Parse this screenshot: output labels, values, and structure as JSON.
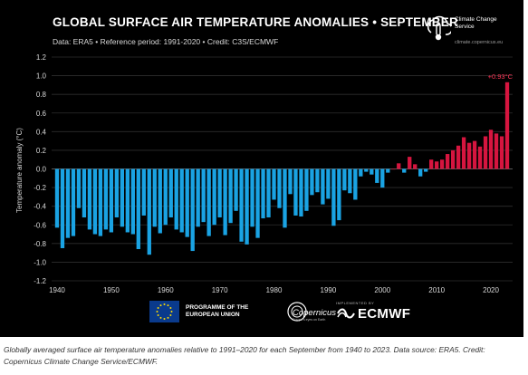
{
  "header": {
    "title": "GLOBAL SURFACE AIR TEMPERATURE ANOMALIES • SEPTEMBER",
    "subtitle": "Data: ERA5 • Reference period: 1991-2020 • Credit: C3S/ECMWF"
  },
  "logo": {
    "name": "Climate Change Service",
    "url": "climate.copernicus.eu",
    "icon": "thermometer-cloud-icon"
  },
  "footer": {
    "eu_text": "PROGRAMME OF THE EUROPEAN UNION",
    "copernicus_text": "Copernicus",
    "copernicus_sub": "Europe's eyes on Earth",
    "ecmwf_small": "IMPLEMENTED BY",
    "ecmwf_text": "ECMWF"
  },
  "caption": "Globally averaged surface air temperature anomalies relative to 1991–2020 for each September from 1940 to 2023. Data source: ERA5. Credit: Copernicus Climate Change Service/ECMWF.",
  "colors": {
    "background": "#000000",
    "positive": "#d6153f",
    "negative": "#1aa3e3",
    "label": "#ff3355"
  },
  "chart_data": {
    "type": "bar",
    "title": "GLOBAL SURFACE AIR TEMPERATURE ANOMALIES • SEPTEMBER",
    "ylabel": "Temperature anomaly (°C)",
    "xlabel": "",
    "ylim": [
      -1.2,
      1.2
    ],
    "xlim": [
      1939,
      2024
    ],
    "yticks": [
      "1.2",
      "1.0",
      "0.8",
      "0.6",
      "0.4",
      "0.2",
      "0.0",
      "-0.2",
      "-0.4",
      "-0.6",
      "-0.8",
      "-1.0",
      "-1.2"
    ],
    "xticks": [
      "1940",
      "1950",
      "1960",
      "1970",
      "1980",
      "1990",
      "2000",
      "2010",
      "2020"
    ],
    "annotation": "+0.93°C",
    "grid": true,
    "x": [
      1940,
      1941,
      1942,
      1943,
      1944,
      1945,
      1946,
      1947,
      1948,
      1949,
      1950,
      1951,
      1952,
      1953,
      1954,
      1955,
      1956,
      1957,
      1958,
      1959,
      1960,
      1961,
      1962,
      1963,
      1964,
      1965,
      1966,
      1967,
      1968,
      1969,
      1970,
      1971,
      1972,
      1973,
      1974,
      1975,
      1976,
      1977,
      1978,
      1979,
      1980,
      1981,
      1982,
      1983,
      1984,
      1985,
      1986,
      1987,
      1988,
      1989,
      1990,
      1991,
      1992,
      1993,
      1994,
      1995,
      1996,
      1997,
      1998,
      1999,
      2000,
      2001,
      2002,
      2003,
      2004,
      2005,
      2006,
      2007,
      2008,
      2009,
      2010,
      2011,
      2012,
      2013,
      2014,
      2015,
      2016,
      2017,
      2018,
      2019,
      2020,
      2021,
      2022,
      2023
    ],
    "values": [
      -0.63,
      -0.85,
      -0.74,
      -0.72,
      -0.42,
      -0.52,
      -0.65,
      -0.7,
      -0.72,
      -0.65,
      -0.68,
      -0.52,
      -0.62,
      -0.68,
      -0.7,
      -0.86,
      -0.5,
      -0.92,
      -0.62,
      -0.69,
      -0.6,
      -0.52,
      -0.65,
      -0.68,
      -0.73,
      -0.88,
      -0.62,
      -0.57,
      -0.72,
      -0.6,
      -0.52,
      -0.71,
      -0.58,
      -0.45,
      -0.78,
      -0.81,
      -0.62,
      -0.74,
      -0.53,
      -0.52,
      -0.33,
      -0.42,
      -0.63,
      -0.27,
      -0.5,
      -0.51,
      -0.45,
      -0.28,
      -0.25,
      -0.38,
      -0.32,
      -0.61,
      -0.55,
      -0.23,
      -0.26,
      -0.33,
      -0.08,
      -0.03,
      -0.06,
      -0.15,
      -0.2,
      -0.04,
      0.0,
      0.06,
      -0.04,
      0.13,
      0.05,
      -0.08,
      -0.03,
      0.1,
      0.08,
      0.1,
      0.16,
      0.2,
      0.25,
      0.34,
      0.28,
      0.3,
      0.24,
      0.35,
      0.42,
      0.38,
      0.35,
      0.93
    ]
  }
}
